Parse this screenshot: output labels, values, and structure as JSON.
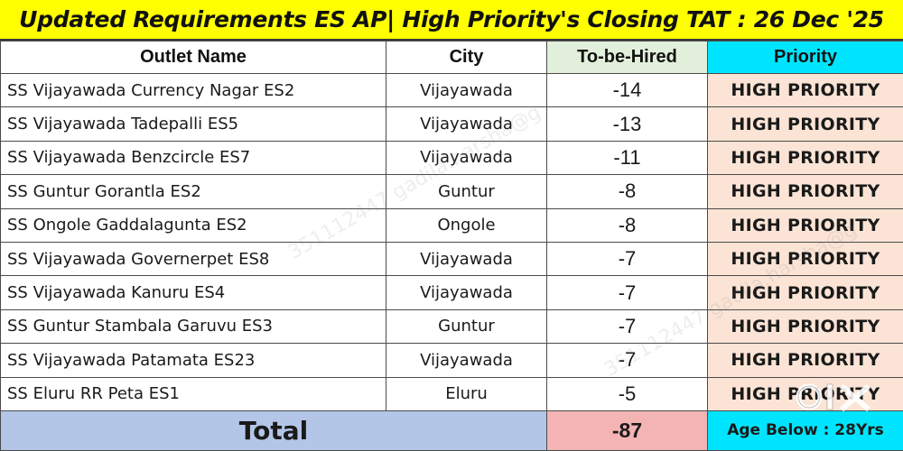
{
  "title": "Updated Requirements ES AP| High Priority's Closing TAT : 26 Dec '25",
  "columns": {
    "outlet": "Outlet Name",
    "city": "City",
    "hired": "To-be-Hired",
    "priority": "Priority"
  },
  "rows": [
    {
      "outlet": "SS Vijayawada Currency Nagar ES2",
      "city": "Vijayawada",
      "hired": "-14",
      "priority": "HIGH PRIORITY"
    },
    {
      "outlet": "SS Vijayawada Tadepalli ES5",
      "city": "Vijayawada",
      "hired": "-13",
      "priority": "HIGH PRIORITY"
    },
    {
      "outlet": "SS Vijayawada Benzcircle ES7",
      "city": "Vijayawada",
      "hired": "-11",
      "priority": "HIGH PRIORITY"
    },
    {
      "outlet": "SS Guntur Gorantla ES2",
      "city": "Guntur",
      "hired": "-8",
      "priority": "HIGH PRIORITY"
    },
    {
      "outlet": "SS Ongole Gaddalagunta ES2",
      "city": "Ongole",
      "hired": "-8",
      "priority": "HIGH PRIORITY"
    },
    {
      "outlet": "SS Vijayawada Governerpet ES8",
      "city": "Vijayawada",
      "hired": "-7",
      "priority": "HIGH PRIORITY"
    },
    {
      "outlet": "SS Vijayawada Kanuru ES4",
      "city": "Vijayawada",
      "hired": "-7",
      "priority": "HIGH PRIORITY"
    },
    {
      "outlet": "SS Guntur Stambala Garuvu ES3",
      "city": "Guntur",
      "hired": "-7",
      "priority": "HIGH PRIORITY"
    },
    {
      "outlet": "SS Vijayawada Patamata ES23",
      "city": "Vijayawada",
      "hired": "-7",
      "priority": "HIGH PRIORITY"
    },
    {
      "outlet": "SS Eluru RR Peta ES1",
      "city": "Eluru",
      "hired": "-5",
      "priority": "HIGH PRIORITY"
    }
  ],
  "total": {
    "label": "Total",
    "value": "-87",
    "age_note": "Age Below : 28Yrs"
  },
  "watermark": "351112447 gadila.harsha@g",
  "colors": {
    "title_bg": "#ffff00",
    "priority_header_bg": "#00e5ff",
    "hired_header_bg": "#e2efda",
    "priority_cell_bg": "#fbe4d5",
    "total_row_bg": "#b4c6e7",
    "total_value_bg": "#f4b4b4"
  },
  "logo": "olx-logo"
}
